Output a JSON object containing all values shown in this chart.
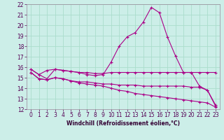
{
  "title": "",
  "xlabel": "Windchill (Refroidissement éolien,°C)",
  "ylabel": "",
  "background_color": "#cceee8",
  "grid_color": "#aaddcc",
  "line_color": "#aa0088",
  "xlim": [
    -0.5,
    23.5
  ],
  "ylim": [
    12,
    22
  ],
  "yticks": [
    12,
    13,
    14,
    15,
    16,
    17,
    18,
    19,
    20,
    21,
    22
  ],
  "xticks": [
    0,
    1,
    2,
    3,
    4,
    5,
    6,
    7,
    8,
    9,
    10,
    11,
    12,
    13,
    14,
    15,
    16,
    17,
    18,
    19,
    20,
    21,
    22,
    23
  ],
  "line1_x": [
    0,
    1,
    2,
    3,
    4,
    5,
    6,
    7,
    8,
    9,
    10,
    11,
    12,
    13,
    14,
    15,
    16,
    17,
    18,
    19,
    20,
    21,
    22,
    23
  ],
  "line1_y": [
    15.8,
    15.3,
    14.9,
    15.8,
    15.7,
    15.6,
    15.5,
    15.3,
    15.2,
    15.3,
    16.5,
    18.0,
    18.9,
    19.3,
    20.3,
    21.7,
    21.2,
    18.9,
    17.1,
    15.5,
    15.5,
    14.2,
    13.8,
    12.3
  ],
  "line2_x": [
    0,
    1,
    2,
    3,
    4,
    5,
    6,
    7,
    8,
    9,
    10,
    11,
    12,
    13,
    14,
    15,
    16,
    17,
    18,
    19,
    20,
    21,
    22,
    23
  ],
  "line2_y": [
    15.8,
    15.3,
    15.7,
    15.8,
    15.7,
    15.6,
    15.5,
    15.5,
    15.4,
    15.4,
    15.5,
    15.5,
    15.5,
    15.5,
    15.5,
    15.5,
    15.5,
    15.5,
    15.5,
    15.5,
    15.5,
    15.5,
    15.5,
    15.5
  ],
  "line3_x": [
    0,
    1,
    2,
    3,
    4,
    5,
    6,
    7,
    8,
    9,
    10,
    11,
    12,
    13,
    14,
    15,
    16,
    17,
    18,
    19,
    20,
    21,
    22,
    23
  ],
  "line3_y": [
    15.5,
    14.9,
    14.8,
    15.0,
    14.9,
    14.7,
    14.6,
    14.6,
    14.5,
    14.4,
    14.4,
    14.3,
    14.3,
    14.3,
    14.2,
    14.2,
    14.2,
    14.2,
    14.2,
    14.2,
    14.1,
    14.1,
    13.8,
    12.4
  ],
  "line4_x": [
    0,
    1,
    2,
    3,
    4,
    5,
    6,
    7,
    8,
    9,
    10,
    11,
    12,
    13,
    14,
    15,
    16,
    17,
    18,
    19,
    20,
    21,
    22,
    23
  ],
  "line4_y": [
    15.5,
    14.9,
    14.8,
    15.0,
    14.9,
    14.7,
    14.5,
    14.4,
    14.3,
    14.2,
    14.0,
    13.8,
    13.7,
    13.5,
    13.4,
    13.3,
    13.2,
    13.1,
    13.0,
    12.9,
    12.8,
    12.7,
    12.6,
    12.2
  ],
  "tick_fontsize": 5.5,
  "xlabel_fontsize": 5.5
}
